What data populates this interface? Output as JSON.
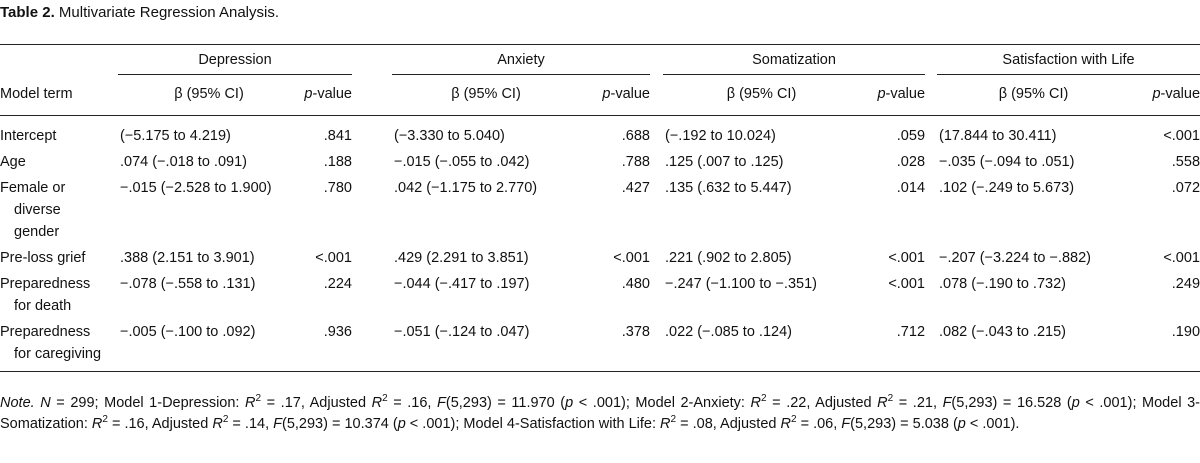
{
  "caption": {
    "label": "Table 2.",
    "title": "Multivariate Regression Analysis."
  },
  "table": {
    "groups": [
      "Depression",
      "Anxiety",
      "Somatization",
      "Satisfaction with Life"
    ],
    "term_header": "Model term",
    "column_headers": [
      "β (95% CI)",
      "p-value",
      "β (95% CI)",
      "p-value",
      "β (95% CI)",
      "p-value",
      "β (95% CI)",
      "p-value"
    ],
    "rows": [
      {
        "term": "Intercept",
        "cells": [
          "(−5.175 to 4.219)",
          ".841",
          "(−3.330 to 5.040)",
          ".688",
          "(−.192 to 10.024)",
          ".059",
          "(17.844 to 30.411)",
          "<.001"
        ]
      },
      {
        "term": "Age",
        "cells": [
          ".074 (−.018 to .091)",
          ".188",
          "−.015 (−.055 to .042)",
          ".788",
          ".125 (.007 to .125)",
          ".028",
          "−.035 (−.094 to .051)",
          ".558"
        ]
      },
      {
        "term": "Female or diverse gender",
        "cells": [
          "−.015 (−2.528 to 1.900)",
          ".780",
          ".042 (−1.175 to 2.770)",
          ".427",
          ".135 (.632 to 5.447)",
          ".014",
          ".102 (−.249 to 5.673)",
          ".072"
        ]
      },
      {
        "term": "Pre-loss grief",
        "cells": [
          ".388 (2.151 to 3.901)",
          "<.001",
          ".429 (2.291 to 3.851)",
          "<.001",
          ".221 (.902 to 2.805)",
          "<.001",
          "−.207 (−3.224 to −.882)",
          "<.001"
        ]
      },
      {
        "term": "Preparedness for death",
        "cells": [
          "−.078 (−.558 to .131)",
          ".224",
          "−.044 (−.417 to .197)",
          ".480",
          "−.247 (−1.100 to −.351)",
          "<.001",
          ".078 (−.190 to .732)",
          ".249"
        ]
      },
      {
        "term": "Preparedness for caregiving",
        "cells": [
          "−.005 (−.100 to .092)",
          ".936",
          "−.051 (−.124 to .047)",
          ".378",
          ".022 (−.085 to .124)",
          ".712",
          ".082 (−.043 to .215)",
          ".190"
        ]
      }
    ]
  },
  "note": [
    "Note.",
    "N",
    " = 299; Model 1-Depression: ",
    "R",
    "2",
    " = .17, Adjusted ",
    "R",
    "2",
    " = .16, ",
    "F",
    "(5,293) = 11.970 (",
    "p",
    " < .001); Model 2-Anxiety: ",
    "R",
    "2",
    " = .22, Adjusted ",
    "R",
    "2",
    " = .21, ",
    "F",
    "(5,293) = 16.528 (",
    "p",
    " < .001); Model 3-Somatization: ",
    "R",
    "2",
    " = .16, Adjusted ",
    "R",
    "2",
    " = .14, ",
    "F",
    "(5,293) = 10.374 (",
    "p",
    " < .001); Model 4-Satisfaction with Life: ",
    "R",
    "2",
    " = .08, Adjusted ",
    "R",
    "2",
    " = .06, ",
    "F",
    "(5,293) = 5.038 (",
    "p",
    " < .001)."
  ]
}
